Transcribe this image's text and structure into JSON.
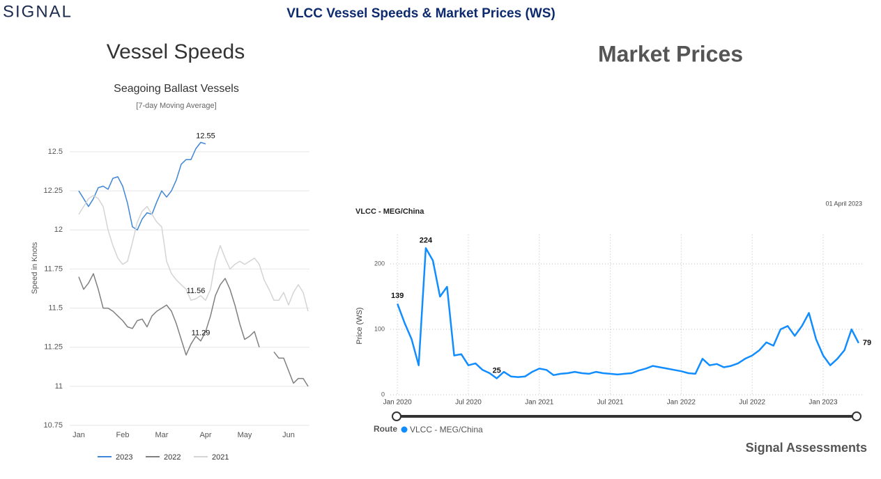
{
  "header": {
    "logo": "SIGNAL",
    "title": "VLCC Vessel Speeds & Market Prices (WS)"
  },
  "panels": {
    "left": "Vessel Speeds",
    "right": "Market Prices"
  },
  "footer": "Signal Assessments",
  "chart_data": [
    {
      "type": "line",
      "title": "Seagoing Ballast Vessels",
      "subtitle": "[7-day Moving Average]",
      "y_label": "Speed in Knots",
      "categories": [
        "Jan",
        null,
        null,
        null,
        null,
        null,
        null,
        null,
        null,
        "Feb",
        null,
        null,
        null,
        null,
        null,
        null,
        null,
        "Mar",
        null,
        null,
        null,
        null,
        null,
        null,
        null,
        null,
        "Apr",
        null,
        null,
        null,
        null,
        null,
        null,
        null,
        "May",
        null,
        null,
        null,
        null,
        null,
        null,
        null,
        null,
        "Jun",
        null,
        null,
        null,
        null
      ],
      "ylim": [
        10.75,
        12.6
      ],
      "yticks": [
        10.75,
        11,
        11.25,
        11.5,
        11.75,
        12,
        12.25,
        12.5
      ],
      "grid": true,
      "series": [
        {
          "name": "2023",
          "color": "#3f86d6",
          "values": [
            12.25,
            12.2,
            12.15,
            12.2,
            12.27,
            12.28,
            12.26,
            12.33,
            12.34,
            12.28,
            12.17,
            12.02,
            12.0,
            12.07,
            12.11,
            12.1,
            12.18,
            12.25,
            12.21,
            12.25,
            12.32,
            12.42,
            12.45,
            12.45,
            12.52,
            12.56,
            12.55,
            null,
            null,
            null,
            null,
            null,
            null,
            null,
            null,
            null,
            null,
            null,
            null,
            null,
            null,
            null,
            null,
            null,
            null,
            null,
            null,
            null
          ],
          "value_labels": [
            null,
            null,
            null,
            null,
            null,
            null,
            null,
            null,
            null,
            null,
            null,
            null,
            null,
            null,
            null,
            null,
            null,
            null,
            null,
            null,
            null,
            null,
            null,
            null,
            null,
            null,
            "12.55",
            null,
            null,
            null,
            null,
            null,
            null,
            null,
            null,
            null,
            null,
            null,
            null,
            null,
            null,
            null,
            null,
            null,
            null,
            null,
            null,
            null
          ]
        },
        {
          "name": "2022",
          "color": "#7f7f7f",
          "values": [
            11.7,
            11.62,
            11.66,
            11.72,
            11.62,
            11.5,
            11.5,
            11.48,
            11.45,
            11.42,
            11.38,
            11.37,
            11.42,
            11.43,
            11.38,
            11.45,
            11.48,
            11.5,
            11.52,
            11.48,
            11.4,
            11.3,
            11.2,
            11.27,
            11.32,
            11.29,
            11.35,
            11.45,
            11.58,
            11.65,
            11.69,
            11.62,
            11.52,
            11.4,
            11.3,
            11.32,
            11.35,
            11.25,
            null,
            null,
            11.22,
            11.18,
            11.18,
            11.1,
            11.02,
            11.05,
            11.05,
            11.0
          ],
          "value_labels": [
            null,
            null,
            null,
            null,
            null,
            null,
            null,
            null,
            null,
            null,
            null,
            null,
            null,
            null,
            null,
            null,
            null,
            null,
            null,
            null,
            null,
            null,
            null,
            null,
            null,
            "11.29",
            null,
            null,
            null,
            null,
            null,
            null,
            null,
            null,
            null,
            null,
            null,
            null,
            null,
            null,
            null,
            null,
            null,
            null,
            null,
            null,
            null,
            null
          ]
        },
        {
          "name": "2021",
          "color": "#d4d4d4",
          "values": [
            12.1,
            12.15,
            12.2,
            12.22,
            12.2,
            12.15,
            12.0,
            11.9,
            11.82,
            11.78,
            11.8,
            11.92,
            12.05,
            12.12,
            12.15,
            12.1,
            12.05,
            12.02,
            11.8,
            11.72,
            11.68,
            11.65,
            11.62,
            11.55,
            11.56,
            11.58,
            11.55,
            11.62,
            11.8,
            11.9,
            11.82,
            11.75,
            11.78,
            11.8,
            11.78,
            11.8,
            11.82,
            11.78,
            11.68,
            11.62,
            11.55,
            11.55,
            11.6,
            11.52,
            11.6,
            11.65,
            11.6,
            11.48
          ],
          "value_labels": [
            null,
            null,
            null,
            null,
            null,
            null,
            null,
            null,
            null,
            null,
            null,
            null,
            null,
            null,
            null,
            null,
            null,
            null,
            null,
            null,
            null,
            null,
            null,
            null,
            "11.56",
            null,
            null,
            null,
            null,
            null,
            null,
            null,
            null,
            null,
            null,
            null,
            null,
            null,
            null,
            null,
            null,
            null,
            null,
            null,
            null,
            null,
            null,
            null
          ]
        }
      ]
    },
    {
      "type": "line",
      "title": "VLCC - MEG/China",
      "date_label": "01 April 2023",
      "y_label": "Price (WS)",
      "legend_title": "Route",
      "x": [
        2020,
        2020.05,
        2020.1,
        2020.15,
        2020.2,
        2020.25,
        2020.3,
        2020.35,
        2020.4,
        2020.45,
        2020.5,
        2020.55,
        2020.6,
        2020.65,
        2020.7,
        2020.75,
        2020.8,
        2020.85,
        2020.9,
        2020.95,
        2021,
        2021.05,
        2021.1,
        2021.15,
        2021.2,
        2021.25,
        2021.3,
        2021.35,
        2021.4,
        2021.45,
        2021.5,
        2021.55,
        2021.6,
        2021.65,
        2021.7,
        2021.75,
        2021.8,
        2021.85,
        2021.9,
        2021.95,
        2022,
        2022.05,
        2022.1,
        2022.15,
        2022.2,
        2022.25,
        2022.3,
        2022.35,
        2022.4,
        2022.45,
        2022.5,
        2022.55,
        2022.6,
        2022.65,
        2022.7,
        2022.75,
        2022.8,
        2022.85,
        2022.9,
        2022.95,
        2023,
        2023.05,
        2023.1,
        2023.15,
        2023.2,
        2023.25
      ],
      "xlim": [
        2019.95,
        2023.28
      ],
      "xticks": [
        {
          "value": 2020,
          "label": "Jan 2020"
        },
        {
          "value": 2020.5,
          "label": "Jul 2020"
        },
        {
          "value": 2021,
          "label": "Jan 2021"
        },
        {
          "value": 2021.5,
          "label": "Jul 2021"
        },
        {
          "value": 2022,
          "label": "Jan 2022"
        },
        {
          "value": 2022.5,
          "label": "Jul 2022"
        },
        {
          "value": 2023,
          "label": "Jan 2023"
        }
      ],
      "ylim": [
        0,
        245
      ],
      "yticks": [
        0,
        100,
        200
      ],
      "grid": true,
      "series": [
        {
          "name": "VLCC - MEG/China",
          "color": "#118dff",
          "values": [
            139,
            110,
            85,
            45,
            224,
            205,
            150,
            165,
            60,
            62,
            45,
            48,
            38,
            33,
            25,
            35,
            28,
            27,
            28,
            35,
            40,
            38,
            30,
            32,
            33,
            35,
            33,
            32,
            35,
            33,
            32,
            31,
            32,
            33,
            37,
            40,
            44,
            42,
            40,
            38,
            36,
            33,
            32,
            55,
            45,
            47,
            42,
            44,
            48,
            55,
            60,
            68,
            80,
            75,
            100,
            105,
            90,
            105,
            125,
            85,
            60,
            45,
            55,
            68,
            100,
            79
          ],
          "value_labels": [
            "139",
            null,
            null,
            null,
            "224",
            null,
            null,
            null,
            null,
            null,
            null,
            null,
            null,
            null,
            "25",
            null,
            null,
            null,
            null,
            null,
            null,
            null,
            null,
            null,
            null,
            null,
            null,
            null,
            null,
            null,
            null,
            null,
            null,
            null,
            null,
            null,
            null,
            null,
            null,
            null,
            null,
            null,
            null,
            null,
            null,
            null,
            null,
            null,
            null,
            null,
            null,
            null,
            null,
            null,
            null,
            null,
            null,
            null,
            null,
            null,
            null,
            null,
            null,
            null,
            null,
            "79"
          ]
        }
      ]
    }
  ]
}
